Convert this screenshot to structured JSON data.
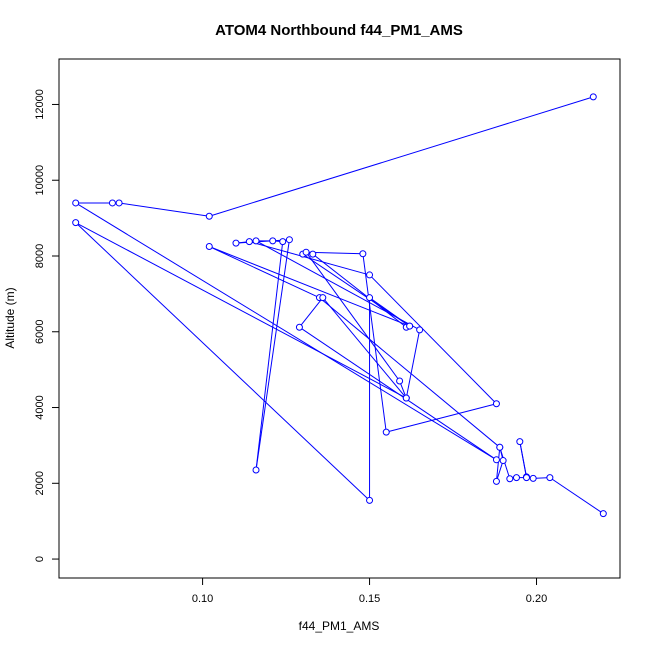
{
  "chart_data": {
    "type": "line",
    "title": "ATOM4 Northbound f44_PM1_AMS",
    "xlabel": "f44_PM1_AMS",
    "ylabel": "Altitude (m)",
    "xlim": [
      0.057,
      0.225
    ],
    "ylim": [
      -500,
      13200
    ],
    "x_ticks": [
      0.1,
      0.15,
      0.2
    ],
    "x_tick_labels": [
      "0.10",
      "0.15",
      "0.20"
    ],
    "y_ticks": [
      0,
      2000,
      4000,
      6000,
      8000,
      10000,
      12000
    ],
    "y_tick_labels": [
      "0",
      "2000",
      "4000",
      "6000",
      "8000",
      "10000",
      "12000"
    ],
    "grid": false,
    "markers": "open-circle",
    "colors": {
      "series": "#0000ff",
      "axis": "#000000",
      "background": "#ffffff"
    },
    "series": [
      {
        "points": [
          [
            0.22,
            1200
          ],
          [
            0.204,
            2150
          ],
          [
            0.199,
            2130
          ],
          [
            0.197,
            2170
          ],
          [
            0.195,
            3100
          ],
          [
            0.197,
            2150
          ],
          [
            0.194,
            2150
          ],
          [
            0.192,
            2120
          ],
          [
            0.189,
            2950
          ],
          [
            0.19,
            2600
          ],
          [
            0.188,
            2050
          ],
          [
            0.189,
            2950
          ],
          [
            0.135,
            6900
          ],
          [
            0.102,
            8250
          ],
          [
            0.162,
            6150
          ],
          [
            0.161,
            6120
          ],
          [
            0.133,
            8050
          ],
          [
            0.13,
            8050
          ],
          [
            0.162,
            6150
          ],
          [
            0.15,
            6900
          ],
          [
            0.15,
            1550
          ],
          [
            0.062,
            8880
          ],
          [
            0.161,
            4250
          ],
          [
            0.159,
            4700
          ],
          [
            0.131,
            8100
          ],
          [
            0.148,
            8060
          ],
          [
            0.155,
            3350
          ],
          [
            0.188,
            4100
          ],
          [
            0.15,
            7500
          ],
          [
            0.114,
            8380
          ],
          [
            0.11,
            8340
          ],
          [
            0.126,
            8430
          ],
          [
            0.116,
            2350
          ],
          [
            0.124,
            8380
          ],
          [
            0.121,
            8400
          ],
          [
            0.116,
            8400
          ],
          [
            0.165,
            6050
          ],
          [
            0.161,
            4250
          ],
          [
            0.136,
            6900
          ],
          [
            0.129,
            6120
          ],
          [
            0.188,
            2620
          ],
          [
            0.062,
            9400
          ],
          [
            0.073,
            9400
          ],
          [
            0.075,
            9400
          ],
          [
            0.102,
            9050
          ],
          [
            0.217,
            12200
          ]
        ]
      }
    ]
  }
}
